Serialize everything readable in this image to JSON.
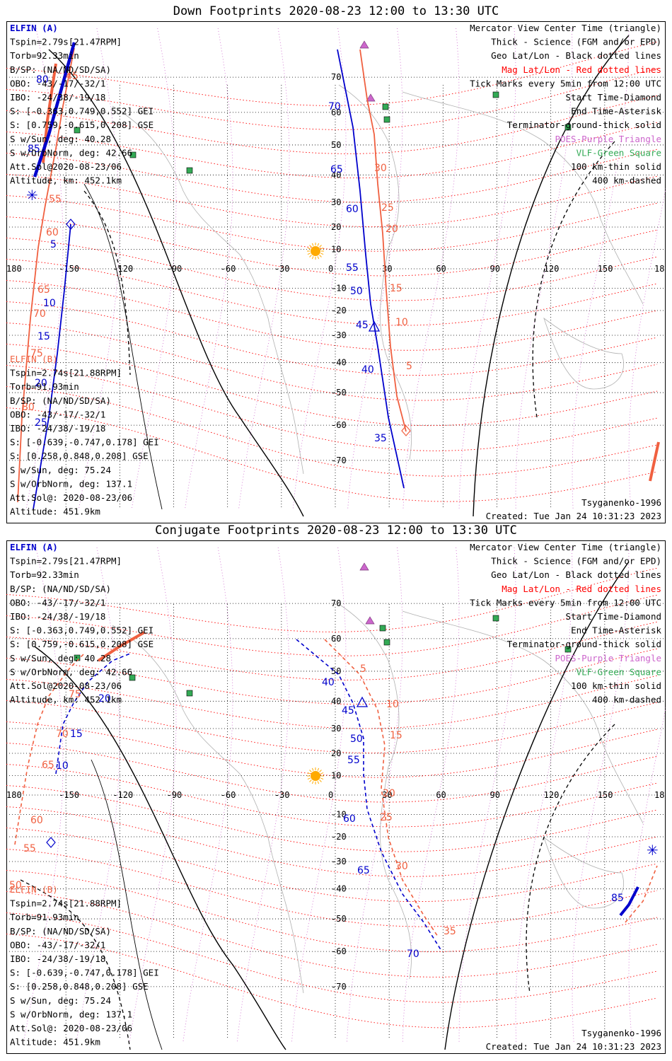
{
  "panels": [
    {
      "id": "down",
      "title": "Down Footprints 2020-08-23 12:00 to 13:30 UTC",
      "sat_a": {
        "name": "ELFIN (A)",
        "lines": [
          "Tspin=2.79s[21.47RPM]",
          "Torb=92.33min",
          "B/SP: (NA/ND/SD/SA)",
          "OBO: -43/-17/-32/1",
          "IBO: -24/38/-19/18",
          "S: [-0.363,0.749,0.552] GEI",
          "S: [0.759,-0.615,0.208] GSE",
          "S w/Sun, deg: 40.28",
          "S w/OrbNorm, deg: 42.66",
          "Att.Sol@2020-08-23/06",
          "Altitude, km: 452.1km"
        ]
      },
      "sat_b": {
        "name": "ELFIN (B)",
        "lines": [
          "Tspin=2.74s[21.88RPM]",
          "Torb=91.93min",
          "B/SP: (NA/ND/SD/SA)",
          "OBO: -43/-17/-32/1",
          "IBO: -24/38/-19/18",
          "S: [-0.639,-0.747,0.178] GEI",
          "S: [0.258,0.848,0.208] GSE",
          "S w/Sun, deg: 75.24",
          "S w/OrbNorm, deg: 137.1",
          "Att.Sol@: 2020-08-23/06",
          "Altitude: 451.9km"
        ]
      },
      "footer_left": "Tsyganenko-1996",
      "footer_right": "Created: Tue Jan 24 10:31:23 2023"
    },
    {
      "id": "conjugate",
      "title": "Conjugate Footprints 2020-08-23 12:00 to 13:30 UTC",
      "sat_a": {
        "name": "ELFIN (A)",
        "lines": [
          "Tspin=2.79s[21.47RPM]",
          "Torb=92.33min",
          "B/SP: (NA/ND/SD/SA)",
          "OBO: -43/-17/-32/1",
          "IBO: -24/38/-19/18",
          "S: [-0.363,0.749,0.552] GEI",
          "S: [0.759,-0.615,0.208] GSE",
          "S w/Sun, deg: 40.28",
          "S w/OrbNorm, deg: 42.66",
          "Att.Sol@2020-08-23/06",
          "Altitude, km: 452.1km"
        ]
      },
      "sat_b": {
        "name": "ELFIN (B)",
        "lines": [
          "Tspin=2.74s[21.88RPM]",
          "Torb=91.93min",
          "B/SP: (NA/ND/SD/SA)",
          "OBO: -43/-17/-32/1",
          "IBO: -24/38/-19/18",
          "S: [-0.639,-0.747,0.178] GEI",
          "S: [0.258,0.848,0.208] GSE",
          "S w/Sun, deg: 75.24",
          "S w/OrbNorm, deg: 137.1",
          "Att.Sol@: 2020-08-23/06",
          "Altitude: 451.9km"
        ]
      },
      "footer_left": "Tsyganenko-1996",
      "footer_right": "Created: Tue Jan 24 10:31:23 2023"
    }
  ],
  "legend": [
    {
      "text": "Mercator View Center Time (triangle)",
      "color": "#000000"
    },
    {
      "text": "Thick - Science (FGM and/or EPD)",
      "color": "#000000"
    },
    {
      "text": "Geo Lat/Lon - Black dotted lines",
      "color": "#000000"
    },
    {
      "text": "Mag Lat/Lon - Red dotted lines",
      "color": "#ff0000"
    },
    {
      "text": "Tick Marks every 5min from 12:00 UTC",
      "color": "#000000"
    },
    {
      "text": "Start Time-Diamond",
      "color": "#000000"
    },
    {
      "text": "End Time-Asterisk",
      "color": "#000000"
    },
    {
      "text": "Terminator-ground-thick solid",
      "color": "#000000"
    },
    {
      "text": "POES-Purple Triangle",
      "color": "#cc66cc"
    },
    {
      "text": "VLF-Green Square",
      "color": "#33aa55"
    },
    {
      "text": "100 km-thin solid",
      "color": "#000000"
    },
    {
      "text": "400 km-dashed",
      "color": "#000000"
    }
  ],
  "axes": {
    "lon_ticks": [
      "180",
      "-150",
      "-120",
      "-90",
      "-60",
      "-30",
      "0",
      "30",
      "60",
      "90",
      "120",
      "150",
      "180"
    ],
    "lat_ticks": [
      "70",
      "60",
      "50",
      "40",
      "30",
      "20",
      "10",
      "-10",
      "-20",
      "-30",
      "-40",
      "-50",
      "-60",
      "-70"
    ]
  },
  "colors": {
    "sat_a": "#0000cc",
    "sat_b": "#f06040",
    "geo_grid": "#000000",
    "mag_grid": "#ff0000",
    "poes": "#cc66cc",
    "vlf": "#33aa55",
    "sun": "#ffaa00"
  }
}
